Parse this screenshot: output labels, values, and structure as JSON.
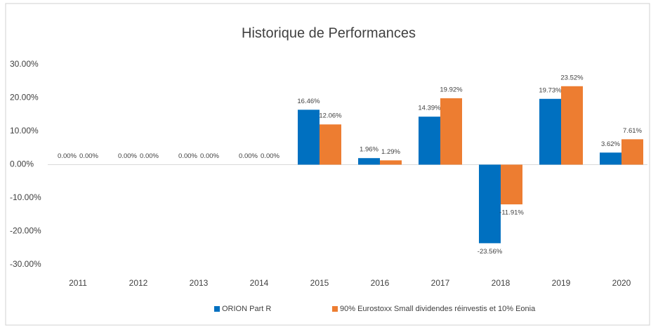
{
  "chart_data": {
    "type": "bar",
    "title": "Historique de Performances",
    "categories": [
      "2011",
      "2012",
      "2013",
      "2014",
      "2015",
      "2016",
      "2017",
      "2018",
      "2019",
      "2020"
    ],
    "series": [
      {
        "name": "ORION Part R",
        "color": "#0070c0",
        "values": [
          0,
          0,
          0,
          0,
          16.46,
          1.96,
          14.39,
          -23.56,
          19.73,
          3.62
        ],
        "value_labels": [
          "0.00%",
          "0.00%",
          "0.00%",
          "0.00%",
          "16.46%",
          "1.96%",
          "14.39%",
          "-23.56%",
          "19.73%",
          "3.62%"
        ]
      },
      {
        "name": "90% Eurostoxx Small dividendes réinvestis et 10% Eonia",
        "color": "#ed7d31",
        "values": [
          0,
          0,
          0,
          0,
          12.06,
          1.29,
          19.92,
          -11.91,
          23.52,
          7.61
        ],
        "value_labels": [
          "0.00%",
          "0.00%",
          "0.00%",
          "0.00%",
          "12.06%",
          "1.29%",
          "19.92%",
          "-11.91%",
          "23.52%",
          "7.61%"
        ]
      }
    ],
    "ylim": [
      -30,
      30
    ],
    "yticks": [
      {
        "value": -30,
        "label": "-30.00%"
      },
      {
        "value": -20,
        "label": "-20.00%"
      },
      {
        "value": -10,
        "label": "-10.00%"
      },
      {
        "value": 0,
        "label": "0.00%"
      },
      {
        "value": 10,
        "label": "10.00%"
      },
      {
        "value": 20,
        "label": "20.00%"
      },
      {
        "value": 30,
        "label": "30.00%"
      }
    ],
    "grid": false,
    "legend": "bottom"
  }
}
